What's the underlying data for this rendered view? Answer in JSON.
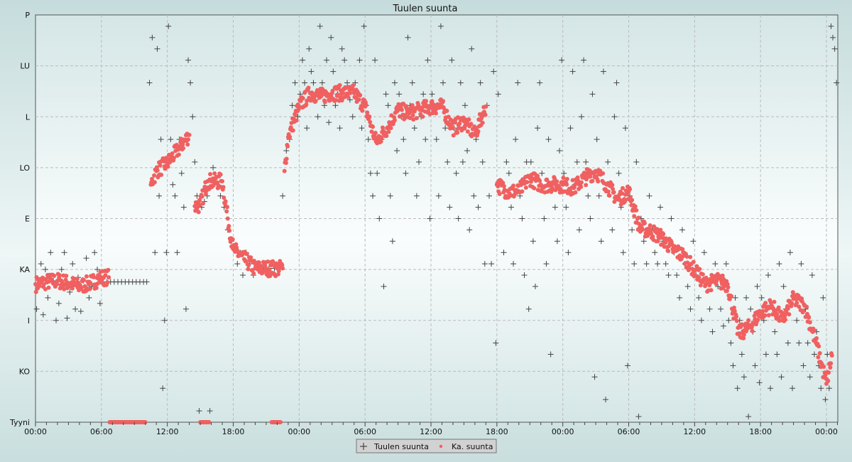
{
  "chart_data": {
    "type": "scatter",
    "title": "Tuulen suunta",
    "xlabel": "",
    "ylabel": "",
    "y_tick_labels": [
      "Tyyni",
      "KO",
      "I",
      "KA",
      "E",
      "LO",
      "L",
      "LU",
      "P"
    ],
    "y_tick_values": [
      0,
      45,
      90,
      135,
      180,
      225,
      270,
      315,
      360
    ],
    "ylim": [
      0,
      360
    ],
    "x_tick_labels": [
      "00:00",
      "06:00",
      "12:00",
      "18:00",
      "00:00",
      "06:00",
      "12:00",
      "18:00",
      "00:00",
      "06:00",
      "12:00",
      "18:00",
      "00:00"
    ],
    "xlim": [
      "1 00:00",
      "4 01:00"
    ],
    "grid": true,
    "legend_position": "bottom-center",
    "legend": [
      {
        "label": "Tuulen suunta",
        "marker": "plus",
        "color": "#444444"
      },
      {
        "label": "Ka. suunta",
        "marker": "dot",
        "color": "#f06060"
      }
    ],
    "series": [
      {
        "name": "Tuulen suunta",
        "color": "#444444",
        "points": [
          {
            "t": "1 00:00",
            "v": [
              100,
              122,
              140,
              95,
              135
            ]
          },
          {
            "t": "1 01:00",
            "v": [
              110,
              150,
              125,
              90
            ]
          },
          {
            "t": "1 02:00",
            "v": [
              105,
              135,
              150,
              92
            ]
          },
          {
            "t": "1 03:00",
            "v": [
              115,
              140,
              100,
              128
            ]
          },
          {
            "t": "1 04:00",
            "v": [
              98,
              125,
              145,
              110
            ]
          },
          {
            "t": "1 05:00",
            "v": [
              120,
              150,
              135,
              105
            ]
          },
          {
            "t": "1 06:00",
            "v": [
              124,
              124,
              124
            ]
          },
          {
            "t": "1 07:00",
            "v": [
              124,
              124,
              124
            ]
          },
          {
            "t": "1 08:00",
            "v": [
              124,
              124,
              124
            ]
          },
          {
            "t": "1 09:00",
            "v": [
              124,
              124,
              124
            ]
          },
          {
            "t": "1 10:00",
            "v": [
              124,
              300,
              340,
              150
            ]
          },
          {
            "t": "1 11:00",
            "v": [
              330,
              200,
              250,
              30,
              90,
              150
            ]
          },
          {
            "t": "1 12:00",
            "v": [
              350,
              250,
              210,
              200,
              150
            ]
          },
          {
            "t": "1 13:00",
            "v": [
              250,
              220,
              190,
              100,
              320
            ]
          },
          {
            "t": "1 14:00",
            "v": [
              300,
              270,
              230,
              200,
              10
            ]
          },
          {
            "t": "1 15:00",
            "v": [
              190,
              195,
              200,
              10
            ]
          },
          {
            "t": "1 16:00",
            "v": [
              225,
              210,
              200
            ]
          },
          {
            "t": "1 17:00",
            "v": [
              190,
              170,
              160
            ]
          },
          {
            "t": "1 18:00",
            "v": [
              155,
              140,
              150,
              130
            ]
          },
          {
            "t": "1 19:00",
            "v": [
              150,
              140,
              130
            ]
          },
          {
            "t": "1 20:00",
            "v": [
              136,
              136
            ]
          },
          {
            "t": "1 21:00",
            "v": [
              136,
              136
            ]
          },
          {
            "t": "1 22:00",
            "v": [
              136,
              200,
              240
            ]
          },
          {
            "t": "1 23:00",
            "v": [
              250,
              280,
              300,
              270
            ]
          },
          {
            "t": "2 00:00",
            "v": [
              290,
              320,
              300,
              260,
              330
            ]
          },
          {
            "t": "2 01:00",
            "v": [
              310,
              300,
              285,
              270,
              350
            ]
          },
          {
            "t": "2 02:00",
            "v": [
              300,
              280,
              320,
              265,
              340
            ]
          },
          {
            "t": "2 03:00",
            "v": [
              310,
              280,
              290,
              260,
              330
            ]
          },
          {
            "t": "2 04:00",
            "v": [
              320,
              300,
              285,
              270
            ]
          },
          {
            "t": "2 05:00",
            "v": [
              300,
              290,
              320,
              260,
              350
            ]
          },
          {
            "t": "2 06:00",
            "v": [
              280,
              250,
              220,
              200,
              320
            ]
          },
          {
            "t": "2 07:00",
            "v": [
              220,
              180,
              250,
              120,
              290
            ]
          },
          {
            "t": "2 08:00",
            "v": [
              280,
              200,
              160,
              300,
              240
            ]
          },
          {
            "t": "2 09:00",
            "v": [
              290,
              270,
              250,
              220,
              340
            ]
          },
          {
            "t": "2 10:00",
            "v": [
              280,
              300,
              260,
              200,
              230
            ]
          },
          {
            "t": "2 11:00",
            "v": [
              270,
              290,
              250,
              320,
              180
            ]
          },
          {
            "t": "2 12:00",
            "v": [
              290,
              280,
              250,
              200,
              350
            ]
          },
          {
            "t": "2 13:00",
            "v": [
              300,
              260,
              230,
              190,
              320
            ]
          },
          {
            "t": "2 14:00",
            "v": [
              260,
              220,
              180,
              300,
              230
            ]
          },
          {
            "t": "2 15:00",
            "v": [
              280,
              240,
              170,
              330,
              200
            ]
          },
          {
            "t": "2 16:00",
            "v": [
              250,
              190,
              300,
              230,
              140
            ]
          },
          {
            "t": "2 17:00",
            "v": [
              280,
              200,
              140,
              310,
              70
            ]
          },
          {
            "t": "2 18:00",
            "v": [
              290,
              210,
              150,
              230
            ]
          },
          {
            "t": "2 19:00",
            "v": [
              220,
              190,
              140,
              250,
              300
            ]
          },
          {
            "t": "2 20:00",
            "v": [
              200,
              180,
              130,
              230,
              100
            ]
          },
          {
            "t": "2 21:00",
            "v": [
              230,
              160,
              120,
              260,
              300
            ]
          },
          {
            "t": "2 22:00",
            "v": [
              220,
              180,
              140,
              250,
              60
            ]
          },
          {
            "t": "2 23:00",
            "v": [
              210,
              190,
              160,
              240,
              320
            ]
          },
          {
            "t": "3 00:00",
            "v": [
              220,
              190,
              150,
              260,
              310
            ]
          },
          {
            "t": "3 01:00",
            "v": [
              210,
              230,
              170,
              270,
              320
            ]
          },
          {
            "t": "3 02:00",
            "v": [
              230,
              200,
              180,
              290,
              40
            ]
          },
          {
            "t": "3 03:00",
            "v": [
              250,
              200,
              160,
              310,
              20
            ]
          },
          {
            "t": "3 04:00",
            "v": [
              230,
              210,
              170,
              270,
              300
            ]
          },
          {
            "t": "3 05:00",
            "v": [
              220,
              190,
              150,
              260,
              50
            ]
          },
          {
            "t": "3 06:00",
            "v": [
              200,
              170,
              140,
              230,
              5
            ]
          },
          {
            "t": "3 07:00",
            "v": [
              180,
              160,
              140,
              200
            ]
          },
          {
            "t": "3 08:00",
            "v": [
              170,
              150,
              140,
              190
            ]
          },
          {
            "t": "3 09:00",
            "v": [
              160,
              140,
              130,
              180
            ]
          },
          {
            "t": "3 10:00",
            "v": [
              150,
              130,
              110,
              170
            ]
          },
          {
            "t": "3 11:00",
            "v": [
              140,
              120,
              100,
              160
            ]
          },
          {
            "t": "3 12:00",
            "v": [
              130,
              110,
              90,
              150
            ]
          },
          {
            "t": "3 13:00",
            "v": [
              125,
              100,
              80,
              140
            ]
          },
          {
            "t": "3 14:00",
            "v": [
              120,
              100,
              85,
              140
            ]
          },
          {
            "t": "3 15:00",
            "v": [
              90,
              70,
              50,
              110,
              30
            ]
          },
          {
            "t": "3 16:00",
            "v": [
              90,
              60,
              40,
              110,
              5
            ]
          },
          {
            "t": "3 17:00",
            "v": [
              100,
              80,
              50,
              120,
              35
            ]
          },
          {
            "t": "3 18:00",
            "v": [
              110,
              90,
              60,
              130,
              30
            ]
          },
          {
            "t": "3 19:00",
            "v": [
              100,
              80,
              60,
              140,
              40
            ]
          },
          {
            "t": "3 20:00",
            "v": [
              120,
              100,
              70,
              150,
              30
            ]
          },
          {
            "t": "3 21:00",
            "v": [
              110,
              90,
              70,
              140,
              50
            ]
          },
          {
            "t": "3 22:00",
            "v": [
              100,
              70,
              40,
              130,
              60
            ]
          },
          {
            "t": "3 23:00",
            "v": [
              80,
              50,
              30,
              110,
              20
            ]
          },
          {
            "t": "4 00:00",
            "v": [
              60,
              30,
              350,
              340,
              330,
              300
            ]
          }
        ]
      },
      {
        "name": "Ka. suunta",
        "color": "#f06060",
        "points": [
          [
            "1 00:00",
            122
          ],
          [
            "1 01:00",
            124
          ],
          [
            "1 02:00",
            125
          ],
          [
            "1 03:00",
            123
          ],
          [
            "1 04:00",
            120
          ],
          [
            "1 05:00",
            123
          ],
          [
            "1 06:00",
            128
          ],
          [
            "1 06:40",
            128
          ],
          [
            "1 06:45",
            0
          ],
          [
            "1 07:30",
            0
          ],
          [
            "1 08:15",
            0
          ],
          [
            "1 09:00",
            0
          ],
          [
            "1 09:45",
            0
          ],
          [
            "1 10:00",
            0
          ],
          [
            "1 10:30",
            210
          ],
          [
            "1 11:00",
            222
          ],
          [
            "1 12:00",
            229
          ],
          [
            "1 13:00",
            241
          ],
          [
            "1 14:00",
            254
          ],
          [
            "1 14:30",
            191
          ],
          [
            "1 15:00",
            192
          ],
          [
            "1 15:40",
            213
          ],
          [
            "1 16:00",
            213
          ],
          [
            "1 17:00",
            213
          ],
          [
            "1 17:30",
            180
          ],
          [
            "1 18:00",
            153
          ],
          [
            "1 19:00",
            144
          ],
          [
            "1 20:00",
            136
          ],
          [
            "1 21:00",
            136
          ],
          [
            "1 22:00",
            136
          ],
          [
            "1 22:30",
            136
          ],
          [
            "1 22:40",
            222
          ],
          [
            "1 23:00",
            252
          ],
          [
            "2 00:00",
            279
          ],
          [
            "2 01:00",
            291
          ],
          [
            "2 02:00",
            288
          ],
          [
            "2 03:00",
            291
          ],
          [
            "2 04:00",
            291
          ],
          [
            "2 05:00",
            291
          ],
          [
            "2 06:00",
            279
          ],
          [
            "2 07:00",
            248
          ],
          [
            "2 08:00",
            260
          ],
          [
            "2 09:00",
            276
          ],
          [
            "2 10:00",
            273
          ],
          [
            "2 11:00",
            276
          ],
          [
            "2 12:00",
            279
          ],
          [
            "2 13:00",
            279
          ],
          [
            "2 14:00",
            260
          ],
          [
            "2 15:00",
            266
          ],
          [
            "2 16:00",
            254
          ],
          [
            "2 17:00",
            279
          ],
          [
            "2 18:00",
            210
          ],
          [
            "2 19:00",
            204
          ],
          [
            "2 20:00",
            204
          ],
          [
            "2 21:00",
            216
          ],
          [
            "2 22:00",
            210
          ],
          [
            "2 23:00",
            210
          ],
          [
            "3 00:00",
            210
          ],
          [
            "3 01:00",
            207
          ],
          [
            "3 02:00",
            216
          ],
          [
            "3 03:00",
            222
          ],
          [
            "3 04:00",
            210
          ],
          [
            "3 05:00",
            197
          ],
          [
            "3 06:00",
            204
          ],
          [
            "3 07:00",
            172
          ],
          [
            "3 08:00",
            169
          ],
          [
            "3 09:00",
            163
          ],
          [
            "3 10:00",
            153
          ],
          [
            "3 11:00",
            147
          ],
          [
            "3 12:00",
            134
          ],
          [
            "3 13:00",
            122
          ],
          [
            "3 14:00",
            125
          ],
          [
            "3 15:00",
            122
          ],
          [
            "3 16:00",
            78
          ],
          [
            "3 17:00",
            84
          ],
          [
            "3 18:00",
            97
          ],
          [
            "3 19:00",
            103
          ],
          [
            "3 20:00",
            90
          ],
          [
            "3 21:00",
            109
          ],
          [
            "3 22:00",
            103
          ],
          [
            "3 23:00",
            72
          ],
          [
            "4 00:00",
            34
          ],
          [
            "4 00:30",
            59
          ]
        ],
        "calm_periods": [
          [
            "1 15:00",
            "1 15:50"
          ],
          [
            "1 21:30",
            "1 22:20"
          ]
        ]
      }
    ]
  }
}
